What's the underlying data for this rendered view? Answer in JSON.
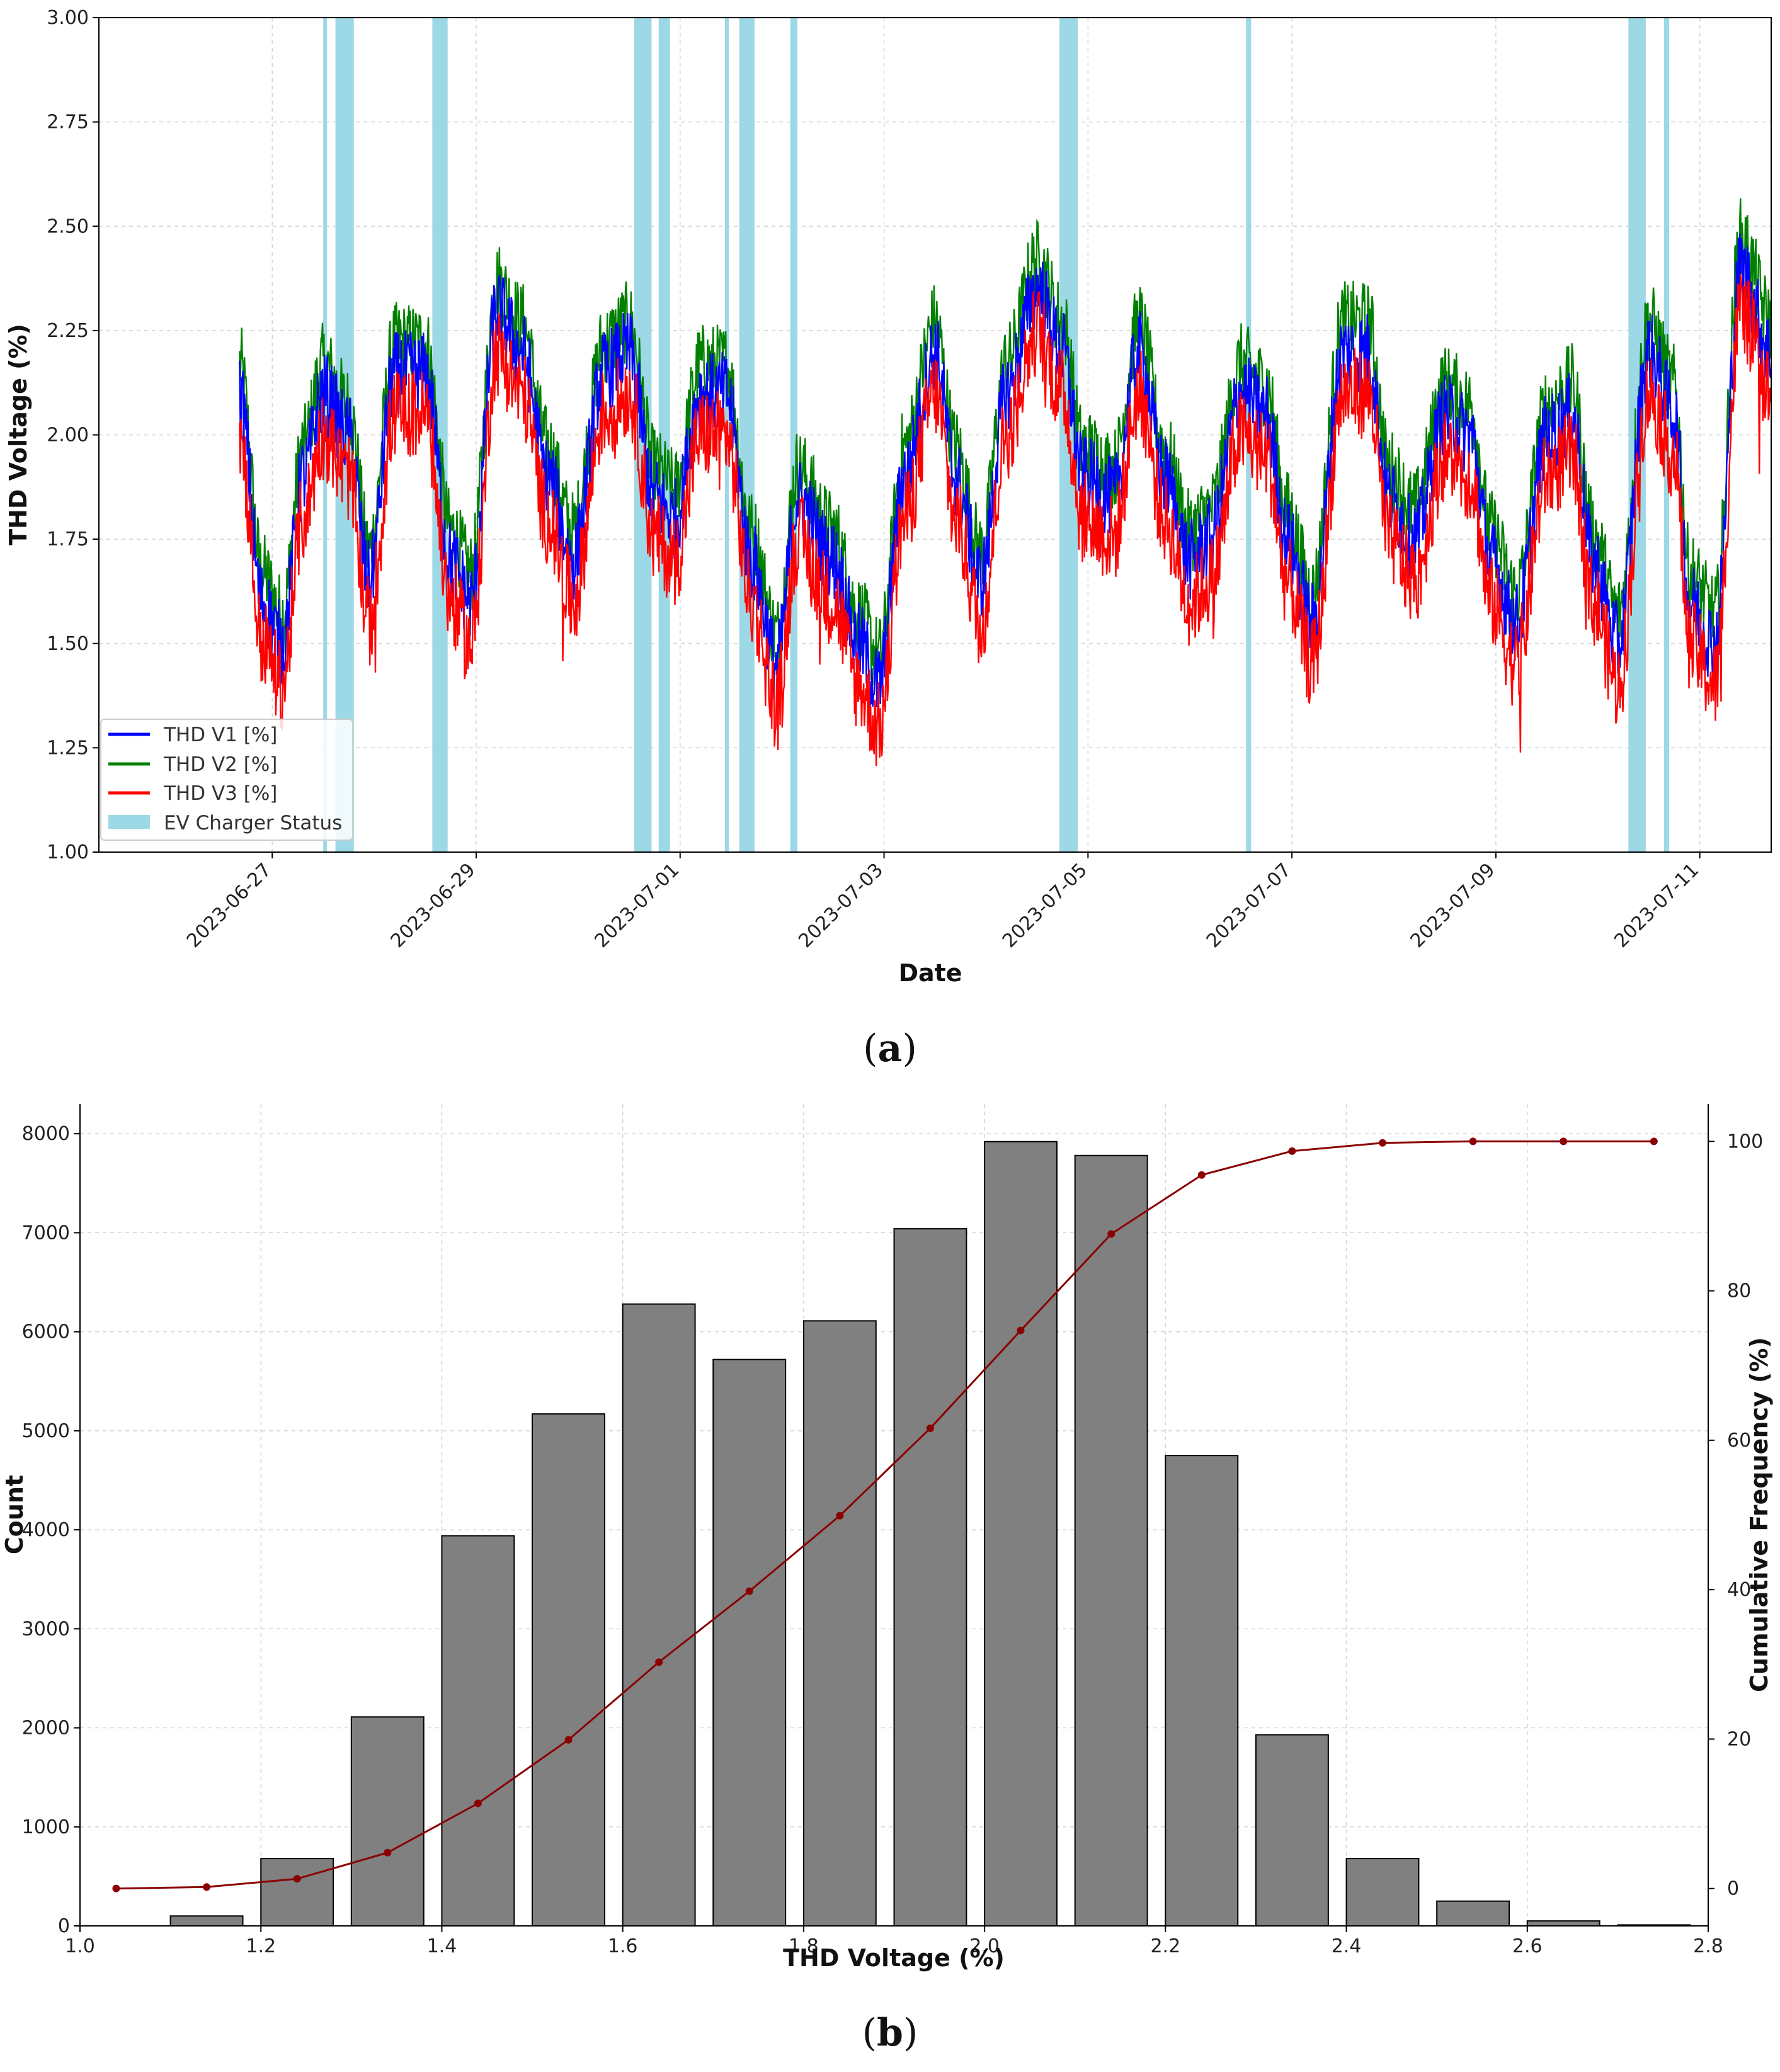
{
  "chart_data": [
    {
      "panel": "a",
      "type": "line",
      "xlabel": "Date",
      "ylabel": "THD Voltage (%)",
      "ylim": [
        1.0,
        3.0
      ],
      "yticks": [
        "1.00",
        "1.25",
        "1.50",
        "1.75",
        "2.00",
        "2.25",
        "2.50",
        "2.75",
        "3.00"
      ],
      "xticks": [
        "2023-06-27",
        "2023-06-29",
        "2023-07-01",
        "2023-07-03",
        "2023-07-05",
        "2023-07-07",
        "2023-07-09",
        "2023-07-11"
      ],
      "xlim_days_from_2023-06-26": [
        -0.7,
        15.7
      ],
      "grid": true,
      "legend_position": "lower-left",
      "series_names": [
        "THD V1 [%]",
        "THD V2 [%]",
        "THD V3 [%]"
      ],
      "shade_name": "EV Charger Status",
      "colors": {
        "v1": "#0000ff",
        "v2": "#008000",
        "v3": "#ff0000",
        "shade": "#9dd8e6"
      },
      "ev_charger_on_intervals_days": [
        [
          1.5,
          1.53
        ],
        [
          1.62,
          1.8
        ],
        [
          2.57,
          2.72
        ],
        [
          4.55,
          4.72
        ],
        [
          4.79,
          4.9
        ],
        [
          5.44,
          5.47
        ],
        [
          5.58,
          5.73
        ],
        [
          6.08,
          6.15
        ],
        [
          8.72,
          8.9
        ],
        [
          10.55,
          10.6
        ],
        [
          14.3,
          14.47
        ],
        [
          14.65,
          14.7
        ]
      ],
      "v1_profile": {
        "x_days": [
          0.68,
          0.9,
          1.1,
          1.3,
          1.5,
          1.75,
          1.95,
          2.2,
          2.5,
          2.75,
          2.95,
          3.2,
          3.45,
          3.7,
          3.95,
          4.25,
          4.5,
          4.75,
          4.95,
          5.2,
          5.45,
          5.7,
          5.95,
          6.15,
          6.5,
          6.75,
          6.95,
          7.2,
          7.5,
          7.7,
          7.95,
          8.2,
          8.5,
          8.75,
          8.95,
          9.25,
          9.5,
          9.75,
          10.0,
          10.2,
          10.5,
          10.75,
          10.95,
          11.2,
          11.5,
          11.75,
          11.95,
          12.2,
          12.5,
          12.75,
          12.95,
          13.2,
          13.5,
          13.75,
          13.95,
          14.2,
          14.5,
          14.75,
          14.9,
          15.15,
          15.4,
          15.7
        ],
        "y": [
          2.1,
          1.6,
          1.5,
          1.9,
          2.1,
          2.0,
          1.65,
          2.15,
          2.15,
          1.7,
          1.6,
          2.3,
          2.2,
          1.9,
          1.7,
          2.15,
          2.2,
          1.85,
          1.8,
          2.1,
          2.1,
          1.7,
          1.45,
          1.85,
          1.7,
          1.5,
          1.4,
          1.9,
          2.2,
          1.9,
          1.65,
          2.1,
          2.35,
          2.2,
          1.9,
          1.85,
          2.2,
          1.9,
          1.7,
          1.75,
          2.1,
          2.05,
          1.75,
          1.55,
          2.2,
          2.2,
          1.85,
          1.75,
          2.05,
          2.0,
          1.7,
          1.55,
          2.0,
          2.05,
          1.7,
          1.5,
          2.2,
          2.05,
          1.6,
          1.5,
          2.4,
          2.2
        ]
      },
      "v2_offset": 0.07,
      "v3_offset": -0.1
    },
    {
      "panel": "b",
      "type": "bar",
      "xlabel": "THD Voltage (%)",
      "ylabel": "Count",
      "y2label": "Cumulative Frequency (%)",
      "xlim": [
        1.0,
        2.8
      ],
      "ylim": [
        0,
        8300
      ],
      "y2lim": [
        -5,
        105
      ],
      "xticks": [
        "1.0",
        "1.2",
        "1.4",
        "1.6",
        "1.8",
        "2.0",
        "2.2",
        "2.4",
        "2.6",
        "2.8"
      ],
      "yticks": [
        "0",
        "1000",
        "2000",
        "3000",
        "4000",
        "5000",
        "6000",
        "7000",
        "8000"
      ],
      "y2ticks": [
        "0",
        "20",
        "40",
        "60",
        "80",
        "100"
      ],
      "bin_centers": [
        1.04,
        1.14,
        1.24,
        1.34,
        1.44,
        1.54,
        1.64,
        1.74,
        1.84,
        1.94,
        2.04,
        2.14,
        2.24,
        2.34,
        2.44,
        2.54,
        2.64,
        2.74
      ],
      "counts": [
        0,
        100,
        680,
        2110,
        3940,
        5170,
        6280,
        5720,
        6110,
        7040,
        7920,
        7780,
        4750,
        1930,
        680,
        250,
        50,
        10
      ],
      "cumulative_percent": [
        0.0,
        0.2,
        1.3,
        4.8,
        11.4,
        19.9,
        30.3,
        39.8,
        49.9,
        61.6,
        74.7,
        87.6,
        95.5,
        98.7,
        99.8,
        100.0,
        100.0,
        100.0
      ],
      "bar_color": "#808080",
      "line_color": "#8b0000",
      "grid": true
    }
  ],
  "captions": {
    "a": "a",
    "b": "b"
  }
}
